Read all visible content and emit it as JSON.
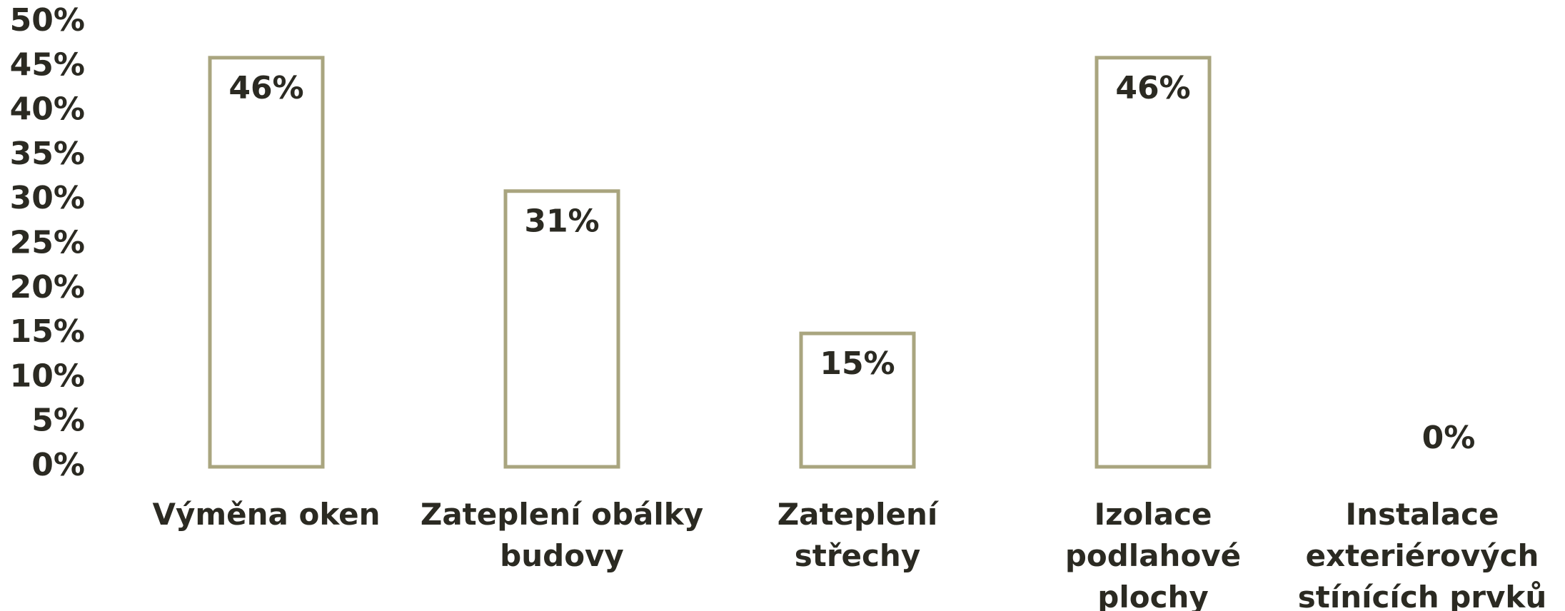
{
  "chart_data": {
    "type": "bar",
    "categories": [
      "Výměna oken",
      "Zateplení obálky budovy",
      "Zateplení střechy",
      "Izolace podlahové plochy",
      "Instalace exteriérových stínících prvků"
    ],
    "values": [
      46,
      31,
      15,
      46,
      0
    ],
    "value_labels": [
      "46%",
      "31%",
      "15%",
      "46%",
      "0%"
    ],
    "color": "#a9a57f",
    "ylim": [
      0,
      50
    ],
    "yticks": [
      {
        "value": 0,
        "label": "0%"
      },
      {
        "value": 5,
        "label": "5%"
      },
      {
        "value": 10,
        "label": "10%"
      },
      {
        "value": 15,
        "label": "15%"
      },
      {
        "value": 20,
        "label": "20%"
      },
      {
        "value": 25,
        "label": "25%"
      },
      {
        "value": 30,
        "label": "30%"
      },
      {
        "value": 35,
        "label": "35%"
      },
      {
        "value": 40,
        "label": "40%"
      },
      {
        "value": 45,
        "label": "45%"
      },
      {
        "value": 50,
        "label": "50%"
      }
    ],
    "grid": false
  }
}
